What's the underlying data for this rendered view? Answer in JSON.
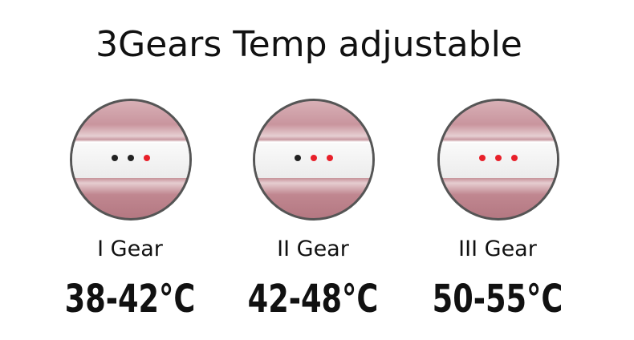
{
  "title": "3Gears Temp adjustable",
  "gears": [
    {
      "label": "I Gear",
      "temp": "38-42°C",
      "dots": [
        "#222222",
        "#222222",
        "#e8202a"
      ]
    },
    {
      "label": "II Gear",
      "temp": "42-48°C",
      "dots": [
        "#222222",
        "#e8202a",
        "#e8202a"
      ]
    },
    {
      "label": "III Gear",
      "temp": "50-55°C",
      "dots": [
        "#e8202a",
        "#e8202a",
        "#e8202a"
      ]
    }
  ]
}
